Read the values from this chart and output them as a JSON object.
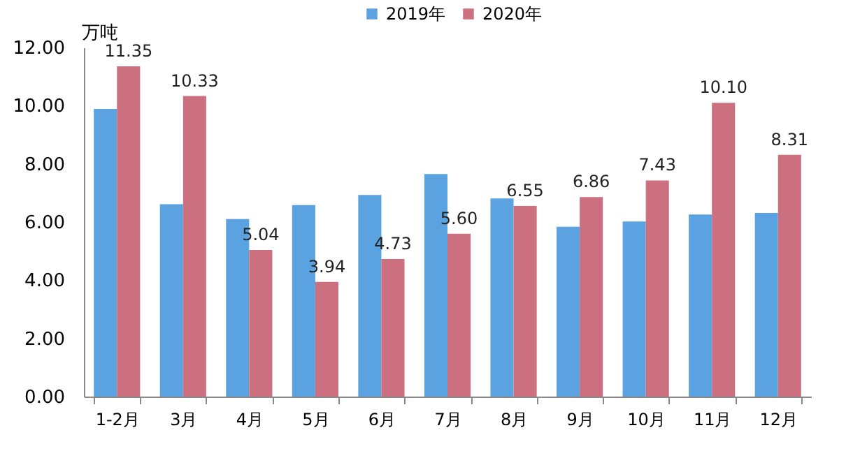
{
  "chart_data": {
    "type": "bar",
    "ylabel": "万吨",
    "categories": [
      "1-2月",
      "3月",
      "4月",
      "5月",
      "6月",
      "7月",
      "8月",
      "9月",
      "10月",
      "11月",
      "12月"
    ],
    "series": [
      {
        "name": "2019年",
        "color": "#5ba3e0",
        "values": [
          9.89,
          6.61,
          6.1,
          6.58,
          6.93,
          7.65,
          6.81,
          5.84,
          6.02,
          6.26,
          6.31
        ]
      },
      {
        "name": "2020年",
        "color": "#cc6f7f",
        "values": [
          11.35,
          10.33,
          5.04,
          3.94,
          4.73,
          5.6,
          6.55,
          6.86,
          7.43,
          10.1,
          8.31
        ],
        "value_labels": [
          "11.35",
          "10.33",
          "5.04",
          "3.94",
          "4.73",
          "5.60",
          "6.55",
          "6.86",
          "7.43",
          "10.10",
          "8.31"
        ]
      }
    ],
    "ylim": [
      0,
      12
    ],
    "yticks": [
      {
        "value": 0,
        "label": "0.00"
      },
      {
        "value": 2,
        "label": "2.00"
      },
      {
        "value": 4,
        "label": "4.00"
      },
      {
        "value": 6,
        "label": "6.00"
      },
      {
        "value": 8,
        "label": "8.00"
      },
      {
        "value": 10,
        "label": "10.00"
      },
      {
        "value": 12,
        "label": "12.00"
      }
    ],
    "grid": false,
    "legend": "top"
  }
}
